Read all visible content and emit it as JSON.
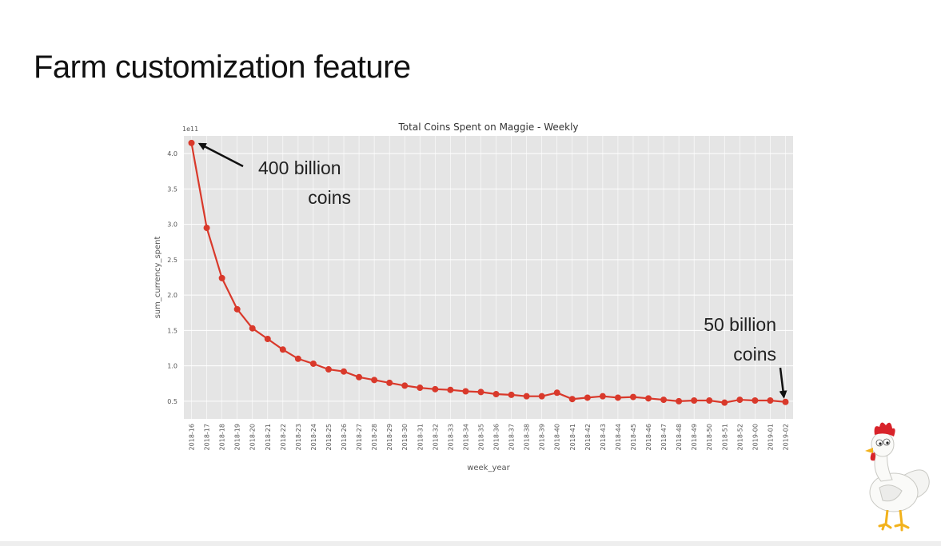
{
  "slide": {
    "title": "Farm customization feature"
  },
  "chart_data": {
    "type": "line",
    "title": "Total Coins Spent on Maggie - Weekly",
    "xlabel": "week_year",
    "ylabel": "sum_currency_spent",
    "y_offset_label": "1e11",
    "ylim": [
      0.25,
      4.25
    ],
    "yticks": [
      0.5,
      1.0,
      1.5,
      2.0,
      2.5,
      3.0,
      3.5,
      4.0
    ],
    "grid": true,
    "categories": [
      "2018-16",
      "2018-17",
      "2018-18",
      "2018-19",
      "2018-20",
      "2018-21",
      "2018-22",
      "2018-23",
      "2018-24",
      "2018-25",
      "2018-26",
      "2018-27",
      "2018-28",
      "2018-29",
      "2018-30",
      "2018-31",
      "2018-32",
      "2018-33",
      "2018-34",
      "2018-35",
      "2018-36",
      "2018-37",
      "2018-38",
      "2018-39",
      "2018-40",
      "2018-41",
      "2018-42",
      "2018-43",
      "2018-44",
      "2018-45",
      "2018-46",
      "2018-47",
      "2018-48",
      "2018-49",
      "2018-50",
      "2018-51",
      "2018-52",
      "2019-00",
      "2019-01",
      "2019-02"
    ],
    "series": [
      {
        "values": [
          4.15,
          2.95,
          2.24,
          1.8,
          1.53,
          1.38,
          1.23,
          1.1,
          1.03,
          0.95,
          0.92,
          0.84,
          0.8,
          0.76,
          0.72,
          0.69,
          0.67,
          0.66,
          0.64,
          0.63,
          0.6,
          0.59,
          0.57,
          0.57,
          0.62,
          0.53,
          0.55,
          0.57,
          0.55,
          0.56,
          0.54,
          0.52,
          0.5,
          0.51,
          0.51,
          0.48,
          0.52,
          0.51,
          0.51,
          0.49
        ],
        "color": "#d9392b"
      }
    ],
    "annotations": [
      {
        "lines": [
          "400 billion",
          "coins"
        ],
        "target_index": 0
      },
      {
        "lines": [
          "50 billion",
          "coins"
        ],
        "target_index": 39
      }
    ],
    "colors": {
      "plot_bg": "#e5e5e5",
      "grid": "#ffffff",
      "line": "#d9392b"
    }
  },
  "mascot": {
    "icon": "chicken-icon"
  }
}
